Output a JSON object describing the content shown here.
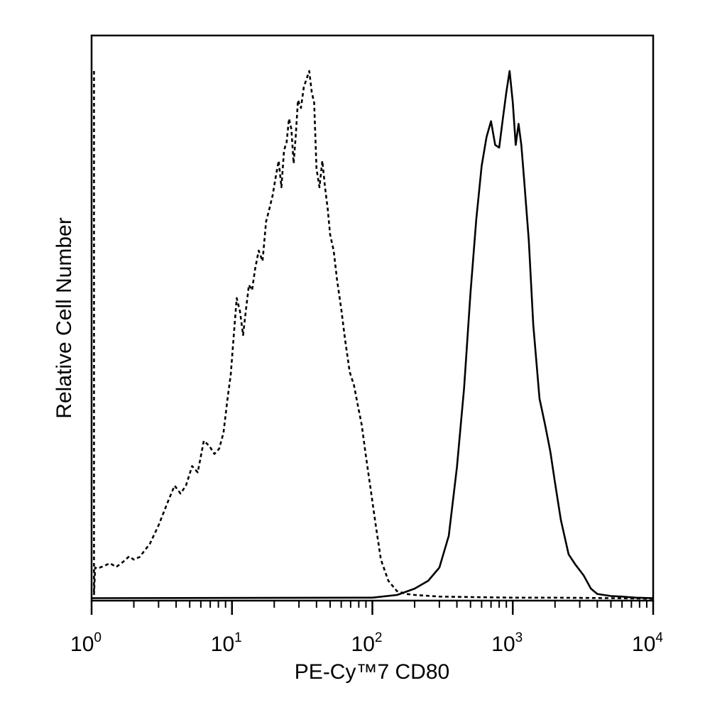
{
  "chart_data": {
    "type": "area",
    "xlabel": "PE-Cy™7 CD80",
    "ylabel": "Relative Cell Number",
    "xscale": "log",
    "xlim": [
      1,
      10000
    ],
    "ylim": [
      0,
      100
    ],
    "grid": false,
    "x_ticks": [
      {
        "base": "10",
        "exp": "0",
        "value": 1
      },
      {
        "base": "10",
        "exp": "1",
        "value": 10
      },
      {
        "base": "10",
        "exp": "2",
        "value": 100
      },
      {
        "base": "10",
        "exp": "3",
        "value": 1000
      },
      {
        "base": "10",
        "exp": "4",
        "value": 10000
      }
    ],
    "series": [
      {
        "line_style": "dashed",
        "color": "#000000",
        "x": [
          1.04,
          1.04,
          1.06,
          1.1,
          1.2,
          1.35,
          1.5,
          1.7,
          1.85,
          2.0,
          2.2,
          2.6,
          3.0,
          3.5,
          3.9,
          4.3,
          4.7,
          5.2,
          5.7,
          6.3,
          6.9,
          7.5,
          8.1,
          8.7,
          9.3,
          9.8,
          10.3,
          10.8,
          11.4,
          12.0,
          12.6,
          13.2,
          13.9,
          14.6,
          15.5,
          16.5,
          17.5,
          18.5,
          19.5,
          20.5,
          21.5,
          22.5,
          23.5,
          24.5,
          25.5,
          26.5,
          27.5,
          28.5,
          29.5,
          31.0,
          32.5,
          34.0,
          35.5,
          37.0,
          38.5,
          40.0,
          42.0,
          44.0,
          46.0,
          48.0,
          50.0,
          53.0,
          56.0,
          60.0,
          64.0,
          69.0,
          74.0,
          79.0,
          84.0,
          90.0,
          97.0,
          105.0,
          115.0,
          130.0,
          150.0,
          175.0,
          200.0,
          300.0,
          500.0,
          1000.0,
          2000.0,
          5000.0,
          10000.0
        ],
        "y": [
          100,
          0.8,
          6.0,
          5.8,
          6.2,
          6.8,
          6.1,
          7.2,
          8.1,
          7.5,
          8.0,
          10.5,
          14.0,
          18.5,
          21.5,
          20.0,
          21.5,
          25.2,
          24.0,
          30.0,
          29.0,
          27.5,
          28.5,
          31.5,
          38.0,
          42.5,
          50.0,
          57.0,
          54.5,
          50.0,
          55.0,
          59.5,
          58.5,
          62.5,
          66.0,
          64.0,
          71.5,
          74.0,
          76.5,
          80.0,
          83.0,
          78.0,
          85.0,
          86.5,
          91.0,
          89.0,
          82.5,
          88.0,
          94.5,
          93.0,
          97.0,
          98.5,
          100.0,
          96.0,
          94.0,
          81.5,
          78.0,
          83.0,
          78.0,
          74.0,
          69.0,
          66.0,
          60.5,
          55.0,
          49.0,
          43.0,
          40.5,
          36.5,
          33.0,
          27.0,
          21.0,
          14.5,
          7.5,
          3.5,
          1.5,
          1.0,
          0.8,
          0.5,
          0.4,
          0.3,
          0.3,
          0.2,
          0.1
        ]
      },
      {
        "line_style": "solid",
        "color": "#000000",
        "x": [
          1.0,
          100.0,
          150.0,
          200.0,
          250.0,
          300.0,
          350.0,
          400.0,
          450.0,
          500.0,
          550.0,
          600.0,
          650.0,
          700.0,
          750.0,
          800.0,
          850.0,
          900.0,
          950.0,
          1000.0,
          1050.0,
          1100.0,
          1150.0,
          1200.0,
          1300.0,
          1400.0,
          1550.0,
          1700.0,
          1850.0,
          2000.0,
          2200.0,
          2500.0,
          2800.0,
          3200.0,
          3600.0,
          4000.0,
          5000.0,
          6000.0,
          7500.0,
          10000.0
        ],
        "y": [
          0.2,
          0.3,
          0.8,
          2.0,
          3.5,
          6.0,
          12.0,
          25.0,
          40.0,
          58.0,
          72.0,
          82.0,
          87.5,
          90.5,
          86.0,
          85.5,
          91.0,
          96.0,
          100.0,
          94.0,
          86.0,
          90.0,
          86.0,
          80.0,
          68.0,
          52.0,
          38.0,
          33.0,
          28.0,
          22.0,
          15.0,
          8.5,
          6.5,
          4.5,
          2.0,
          1.0,
          0.6,
          0.5,
          0.3,
          0.2
        ]
      }
    ]
  }
}
